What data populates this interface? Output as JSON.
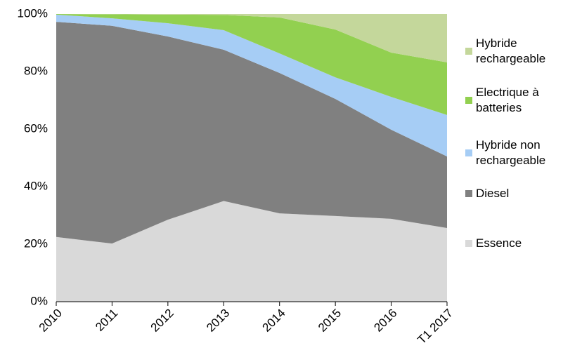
{
  "chart_data": {
    "type": "stacked_area",
    "categories": [
      "2010",
      "2011",
      "2012",
      "2013",
      "2014",
      "2015",
      "2016",
      "T1 2017"
    ],
    "series": [
      {
        "name": "Essence",
        "color": "#d9d9d9",
        "values": [
          22.5,
          20.2,
          28.5,
          35.0,
          30.7,
          29.8,
          28.8,
          25.6
        ]
      },
      {
        "name": "Diesel",
        "color": "#808080",
        "values": [
          74.8,
          75.7,
          63.7,
          52.6,
          48.8,
          40.7,
          31.0,
          24.9
        ]
      },
      {
        "name": "Hybride non rechargeable",
        "color": "#a6cdf5",
        "values": [
          2.5,
          2.6,
          4.6,
          6.8,
          6.8,
          7.5,
          11.4,
          14.4
        ]
      },
      {
        "name": "Electrique à batteries",
        "color": "#92d050",
        "values": [
          0.2,
          1.4,
          3.0,
          5.3,
          12.5,
          16.6,
          15.4,
          18.3
        ]
      },
      {
        "name": "Hybride rechargeable",
        "color": "#c4d79b",
        "values": [
          0,
          0.1,
          0.2,
          0.3,
          1.2,
          5.4,
          13.4,
          16.8
        ]
      }
    ],
    "ylim": [
      0,
      100
    ],
    "yticks": [
      {
        "value": 0,
        "label": "0%"
      },
      {
        "value": 20,
        "label": "20%"
      },
      {
        "value": 40,
        "label": "40%"
      },
      {
        "value": 60,
        "label": "60%"
      },
      {
        "value": 80,
        "label": "80%"
      },
      {
        "value": 100,
        "label": "100%"
      }
    ],
    "legend": "right"
  }
}
